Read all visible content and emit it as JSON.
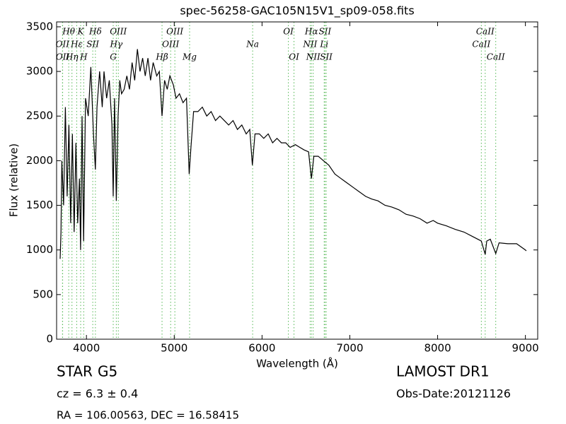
{
  "chart_data": {
    "type": "line",
    "title": "spec-56258-GAC105N15V1_sp09-058.fits",
    "x_label": "Wavelength (Å)",
    "y_label": "Flux (relative)",
    "color": "#000000",
    "xlim": [
      3660,
      9140
    ],
    "ylim": [
      0,
      3555
    ],
    "xticks": [
      4000,
      5000,
      6000,
      7000,
      8000,
      9000
    ],
    "yticks": [
      0,
      500,
      1000,
      1500,
      2000,
      2500,
      3000,
      3500
    ],
    "line_color": "#55b855",
    "spectral_lines": [
      [
        {
          "label": "Hθ",
          "wavelength": 3798
        },
        {
          "label": "K",
          "wavelength": 3934
        },
        {
          "label": "Hδ",
          "wavelength": 4102
        },
        {
          "label": "OIII",
          "wavelength": 4363
        },
        {
          "label": "OIII",
          "wavelength": 5007
        },
        {
          "label": "OI",
          "wavelength": 6300
        },
        {
          "label": "Hα",
          "wavelength": 6563
        },
        {
          "label": "SII",
          "wavelength": 6717
        },
        {
          "label": "CaII",
          "wavelength": 8542
        }
      ],
      [
        {
          "label": "OII",
          "wavelength": 3727
        },
        {
          "label": "Hε",
          "wavelength": 3889
        },
        {
          "label": "SII",
          "wavelength": 4072
        },
        {
          "label": "Hγ",
          "wavelength": 4340
        },
        {
          "label": "OIII",
          "wavelength": 4959
        },
        {
          "label": "Na",
          "wavelength": 5893
        },
        {
          "label": "NII",
          "wavelength": 6548
        },
        {
          "label": "Li",
          "wavelength": 6708
        },
        {
          "label": "CaII",
          "wavelength": 8498
        }
      ],
      [
        {
          "label": "OII",
          "wavelength": 3729
        },
        {
          "label": "Hη",
          "wavelength": 3835
        },
        {
          "label": "H",
          "wavelength": 3969
        },
        {
          "label": "G",
          "wavelength": 4305
        },
        {
          "label": "Hβ",
          "wavelength": 4861
        },
        {
          "label": "Mg",
          "wavelength": 5175
        },
        {
          "label": "OI",
          "wavelength": 6364
        },
        {
          "label": "NII",
          "wavelength": 6583
        },
        {
          "label": "SII",
          "wavelength": 6731
        },
        {
          "label": "CaII",
          "wavelength": 8662
        }
      ]
    ],
    "x": [
      3700,
      3710,
      3720,
      3740,
      3760,
      3780,
      3800,
      3820,
      3840,
      3860,
      3880,
      3900,
      3920,
      3933,
      3950,
      3968,
      3990,
      4020,
      4050,
      4080,
      4102,
      4120,
      4150,
      4180,
      4200,
      4230,
      4260,
      4290,
      4305,
      4320,
      4340,
      4360,
      4380,
      4400,
      4430,
      4460,
      4490,
      4520,
      4550,
      4580,
      4610,
      4640,
      4670,
      4700,
      4730,
      4760,
      4800,
      4830,
      4861,
      4890,
      4920,
      4950,
      4990,
      5020,
      5060,
      5100,
      5140,
      5170,
      5190,
      5220,
      5270,
      5320,
      5370,
      5420,
      5470,
      5520,
      5570,
      5620,
      5670,
      5720,
      5770,
      5820,
      5860,
      5890,
      5920,
      5970,
      6020,
      6070,
      6120,
      6170,
      6220,
      6270,
      6320,
      6380,
      6430,
      6480,
      6530,
      6563,
      6590,
      6640,
      6700,
      6760,
      6830,
      6900,
      6970,
      7040,
      7110,
      7180,
      7250,
      7320,
      7400,
      7480,
      7560,
      7640,
      7720,
      7800,
      7880,
      7950,
      8000,
      8100,
      8200,
      8300,
      8400,
      8498,
      8542,
      8560,
      8600,
      8662,
      8700,
      8800,
      8900,
      9000,
      9010
    ],
    "values": [
      900,
      1200,
      2000,
      1500,
      2600,
      1600,
      2400,
      1300,
      2300,
      1200,
      2200,
      1300,
      1800,
      1000,
      2500,
      1100,
      2700,
      2500,
      3050,
      2300,
      1900,
      2600,
      3000,
      2600,
      3000,
      2700,
      2900,
      2400,
      1600,
      2700,
      1550,
      2500,
      2900,
      2750,
      2800,
      2950,
      2800,
      3100,
      2900,
      3250,
      3000,
      3150,
      2950,
      3150,
      2900,
      3100,
      2950,
      3000,
      2500,
      2900,
      2800,
      2950,
      2850,
      2700,
      2750,
      2650,
      2700,
      1850,
      2150,
      2550,
      2550,
      2600,
      2500,
      2550,
      2450,
      2500,
      2450,
      2400,
      2450,
      2350,
      2400,
      2300,
      2350,
      1950,
      2300,
      2300,
      2250,
      2300,
      2200,
      2250,
      2200,
      2200,
      2150,
      2180,
      2150,
      2120,
      2100,
      1800,
      2050,
      2050,
      2000,
      1950,
      1850,
      1800,
      1750,
      1700,
      1650,
      1600,
      1570,
      1550,
      1500,
      1480,
      1450,
      1400,
      1380,
      1350,
      1300,
      1330,
      1300,
      1270,
      1230,
      1200,
      1150,
      1100,
      950,
      1100,
      1120,
      960,
      1080,
      1070,
      1070,
      1000,
      990
    ],
    "object_class": "STAR",
    "subclass": "G5",
    "survey": "LAMOST DR1",
    "cz": "cz = 6.3 ± 0.4",
    "obs_date": "Obs-Date:20121126",
    "coords": "RA = 106.00563, DEC = 16.58415"
  }
}
